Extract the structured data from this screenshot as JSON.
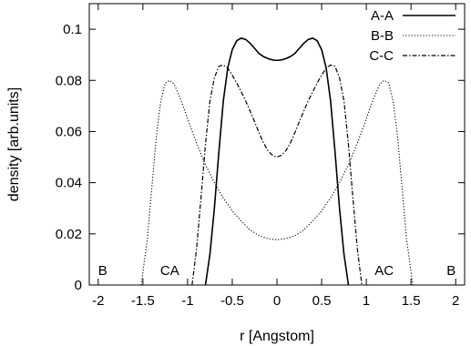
{
  "chart_data": {
    "type": "line",
    "title": "",
    "xlabel": "r [Angstom]",
    "ylabel": "density [arb.units]",
    "xlim": [
      -2.1,
      2.1
    ],
    "ylim": [
      0,
      0.11
    ],
    "xticks": [
      -2,
      -1.5,
      -1,
      -0.5,
      0,
      0.5,
      1,
      1.5,
      2
    ],
    "xtick_labels": [
      "-2",
      "-1.5",
      "-1",
      "-0.5",
      "0",
      "0.5",
      "1",
      "1.5",
      "2"
    ],
    "yticks": [
      0,
      0.02,
      0.04,
      0.06,
      0.08,
      0.1
    ],
    "ytick_labels": [
      "0",
      "0.02",
      "0.04",
      "0.06",
      "0.08",
      "0.1"
    ],
    "grid": false,
    "legend_position": "top-right",
    "series": [
      {
        "name": "A-A",
        "style": "solid",
        "x": [
          -0.8,
          -0.75,
          -0.7,
          -0.65,
          -0.6,
          -0.55,
          -0.5,
          -0.45,
          -0.4,
          -0.35,
          -0.3,
          -0.25,
          -0.2,
          -0.15,
          -0.1,
          -0.05,
          0,
          0.05,
          0.1,
          0.15,
          0.2,
          0.25,
          0.3,
          0.35,
          0.4,
          0.45,
          0.5,
          0.55,
          0.6,
          0.65,
          0.7,
          0.75,
          0.8
        ],
        "y": [
          0.0,
          0.012,
          0.03,
          0.052,
          0.072,
          0.085,
          0.092,
          0.0955,
          0.0965,
          0.096,
          0.0945,
          0.0925,
          0.0905,
          0.0893,
          0.0885,
          0.088,
          0.0878,
          0.088,
          0.0885,
          0.0893,
          0.0905,
          0.0925,
          0.0945,
          0.096,
          0.0965,
          0.0955,
          0.092,
          0.085,
          0.072,
          0.052,
          0.03,
          0.012,
          0.0
        ]
      },
      {
        "name": "B-B",
        "style": "dotted",
        "x": [
          -1.52,
          -1.45,
          -1.4,
          -1.35,
          -1.3,
          -1.25,
          -1.2,
          -1.15,
          -1.1,
          -1.05,
          -1.0,
          -0.9,
          -0.8,
          -0.7,
          -0.6,
          -0.5,
          -0.4,
          -0.3,
          -0.2,
          -0.1,
          0,
          0.1,
          0.2,
          0.3,
          0.4,
          0.5,
          0.6,
          0.7,
          0.8,
          0.9,
          1.0,
          1.05,
          1.1,
          1.15,
          1.2,
          1.25,
          1.3,
          1.35,
          1.4,
          1.45,
          1.52
        ],
        "y": [
          0.0,
          0.018,
          0.038,
          0.058,
          0.072,
          0.079,
          0.08,
          0.0785,
          0.0745,
          0.07,
          0.065,
          0.0555,
          0.047,
          0.04,
          0.034,
          0.029,
          0.025,
          0.0215,
          0.0193,
          0.0181,
          0.0177,
          0.0181,
          0.0193,
          0.0215,
          0.025,
          0.029,
          0.034,
          0.04,
          0.047,
          0.0555,
          0.065,
          0.07,
          0.0745,
          0.0785,
          0.08,
          0.079,
          0.072,
          0.058,
          0.038,
          0.018,
          0.0
        ]
      },
      {
        "name": "C-C",
        "style": "dash-dot",
        "x": [
          -0.95,
          -0.9,
          -0.85,
          -0.8,
          -0.75,
          -0.7,
          -0.65,
          -0.6,
          -0.55,
          -0.5,
          -0.45,
          -0.4,
          -0.35,
          -0.3,
          -0.25,
          -0.2,
          -0.15,
          -0.1,
          -0.05,
          0,
          0.05,
          0.1,
          0.15,
          0.2,
          0.25,
          0.3,
          0.35,
          0.4,
          0.45,
          0.5,
          0.55,
          0.6,
          0.65,
          0.7,
          0.75,
          0.8,
          0.85,
          0.9,
          0.95
        ],
        "y": [
          0.0,
          0.014,
          0.034,
          0.055,
          0.072,
          0.081,
          0.0855,
          0.086,
          0.0848,
          0.082,
          0.079,
          0.0755,
          0.072,
          0.068,
          0.0638,
          0.0595,
          0.0555,
          0.0525,
          0.0507,
          0.05,
          0.0507,
          0.0525,
          0.0555,
          0.0595,
          0.0638,
          0.068,
          0.072,
          0.0755,
          0.079,
          0.082,
          0.0848,
          0.086,
          0.0855,
          0.081,
          0.072,
          0.055,
          0.034,
          0.014,
          0.0
        ]
      }
    ],
    "annotations": [
      {
        "text": "B",
        "x": -1.95,
        "y": 0.004
      },
      {
        "text": "CA",
        "x": -1.2,
        "y": 0.004
      },
      {
        "text": "AC",
        "x": 1.2,
        "y": 0.004
      },
      {
        "text": "B",
        "x": 1.95,
        "y": 0.004
      }
    ]
  }
}
